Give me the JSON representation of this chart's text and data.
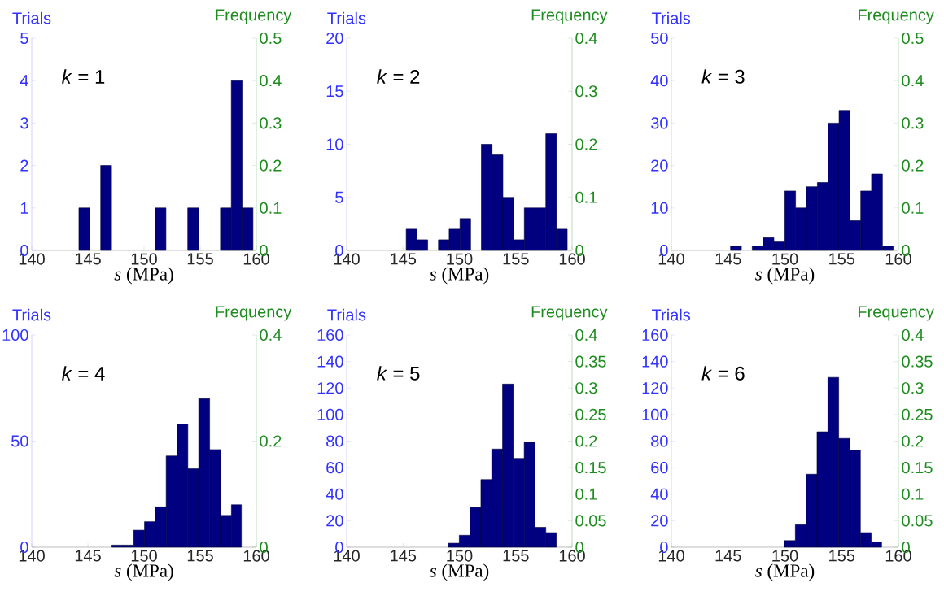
{
  "chart_data": [
    {
      "type": "histogram",
      "color": "#000080",
      "xlabel": "*s* (MPa)",
      "ylabel": "Trials",
      "y2label": "Frequency",
      "annotations": [
        "*k* = 1"
      ],
      "xlim": [
        140,
        160
      ],
      "xticks": [
        140,
        145,
        150,
        155,
        160
      ],
      "ylim": [
        0,
        5
      ],
      "yticks": [
        0,
        1,
        2,
        3,
        4,
        5
      ],
      "y2lim": [
        0,
        0.5
      ],
      "y2ticks": [
        0,
        0.1,
        0.2,
        0.3,
        0.4,
        0.5
      ],
      "bins": [
        144.2,
        145.17,
        146.14,
        147.11,
        148.08,
        149.05,
        150.01,
        150.98,
        151.95,
        152.92,
        153.89,
        154.86,
        155.83,
        156.8,
        157.77,
        158.74,
        159.7
      ],
      "values": [
        1,
        0,
        2,
        0,
        0,
        0,
        0,
        1,
        0,
        0,
        1,
        0,
        0,
        1,
        4,
        1
      ]
    },
    {
      "type": "histogram",
      "color": "#000080",
      "xlabel": "*s* (MPa)",
      "ylabel": "Trials",
      "y2label": "Frequency",
      "annotations": [
        "*k* = 2"
      ],
      "xlim": [
        140,
        160
      ],
      "xticks": [
        140,
        145,
        150,
        155,
        160
      ],
      "ylim": [
        0,
        20
      ],
      "yticks": [
        0,
        5,
        10,
        15,
        20
      ],
      "y2lim": [
        0,
        0.4
      ],
      "y2ticks": [
        0,
        0.1,
        0.2,
        0.3,
        0.4
      ],
      "bins": [
        145.28,
        146.24,
        147.19,
        148.14,
        149.09,
        150.05,
        151.0,
        151.95,
        152.9,
        153.86,
        154.81,
        155.76,
        156.71,
        157.67,
        158.62,
        159.57
      ],
      "values": [
        2,
        1,
        0,
        1,
        2,
        3,
        0,
        10,
        9,
        5,
        1,
        4,
        4,
        11,
        2
      ]
    },
    {
      "type": "histogram",
      "color": "#000080",
      "xlabel": "*s* (MPa)",
      "ylabel": "Trials",
      "y2label": "Frequency",
      "annotations": [
        "*k* = 3"
      ],
      "xlim": [
        140,
        160
      ],
      "xticks": [
        140,
        145,
        150,
        155,
        160
      ],
      "ylim": [
        0,
        50
      ],
      "yticks": [
        0,
        10,
        20,
        30,
        40,
        50
      ],
      "y2lim": [
        0,
        0.5
      ],
      "y2ticks": [
        0,
        0.1,
        0.2,
        0.3,
        0.4,
        0.5
      ],
      "bins": [
        145.21,
        146.17,
        147.12,
        148.08,
        149.03,
        149.99,
        150.94,
        151.9,
        152.86,
        153.81,
        154.77,
        155.72,
        156.68,
        157.63,
        158.59,
        159.55
      ],
      "values": [
        1,
        0,
        1,
        3,
        2,
        14,
        10,
        15,
        16,
        30,
        33,
        7,
        14,
        18,
        1
      ]
    },
    {
      "type": "histogram",
      "color": "#000080",
      "xlabel": "*s* (MPa)",
      "ylabel": "Trials",
      "y2label": "Frequency",
      "annotations": [
        "*k* = 4"
      ],
      "xlim": [
        140,
        160
      ],
      "xticks": [
        140,
        145,
        150,
        155,
        160
      ],
      "ylim": [
        0,
        100
      ],
      "yticks": [
        0,
        50,
        100
      ],
      "y2lim": [
        0,
        0.4
      ],
      "y2ticks": [
        0,
        0.2,
        0.4
      ],
      "bins": [
        147.13,
        148.1,
        149.07,
        150.04,
        151.0,
        151.97,
        152.94,
        153.9,
        154.87,
        155.84,
        156.81,
        157.78,
        158.67
      ],
      "values": [
        1,
        1,
        8,
        12,
        19,
        43,
        58,
        37,
        70,
        46,
        15,
        20
      ]
    },
    {
      "type": "histogram",
      "color": "#000080",
      "xlabel": "*s* (MPa)",
      "ylabel": "Trials",
      "y2label": "Frequency",
      "annotations": [
        "*k* = 5"
      ],
      "xlim": [
        140,
        160
      ],
      "xticks": [
        140,
        145,
        150,
        155,
        160
      ],
      "ylim": [
        0,
        160
      ],
      "yticks": [
        0,
        20,
        40,
        60,
        80,
        100,
        120,
        140,
        160
      ],
      "y2lim": [
        0,
        0.4
      ],
      "y2ticks": [
        0,
        0.05,
        0.1,
        0.15,
        0.2,
        0.25,
        0.3,
        0.35,
        0.4
      ],
      "bins": [
        149.03,
        149.99,
        150.95,
        151.91,
        152.87,
        153.83,
        154.79,
        155.75,
        156.71,
        157.67,
        158.61
      ],
      "values": [
        3,
        9,
        30,
        51,
        74,
        123,
        67,
        79,
        15,
        11
      ]
    },
    {
      "type": "histogram",
      "color": "#000080",
      "xlabel": "*s* (MPa)",
      "ylabel": "Trials",
      "y2label": "Frequency",
      "annotations": [
        "*k* = 6"
      ],
      "xlim": [
        140,
        160
      ],
      "xticks": [
        140,
        145,
        150,
        155,
        160
      ],
      "ylim": [
        0,
        160
      ],
      "yticks": [
        0,
        20,
        40,
        60,
        80,
        100,
        120,
        140,
        160
      ],
      "y2lim": [
        0,
        0.4
      ],
      "y2ticks": [
        0,
        0.05,
        0.1,
        0.15,
        0.2,
        0.25,
        0.3,
        0.35,
        0.4
      ],
      "bins": [
        149.96,
        150.92,
        151.88,
        152.83,
        153.79,
        154.74,
        155.7,
        156.65,
        157.61,
        158.52
      ],
      "values": [
        5,
        17,
        55,
        87,
        128,
        82,
        73,
        11,
        4
      ]
    }
  ]
}
